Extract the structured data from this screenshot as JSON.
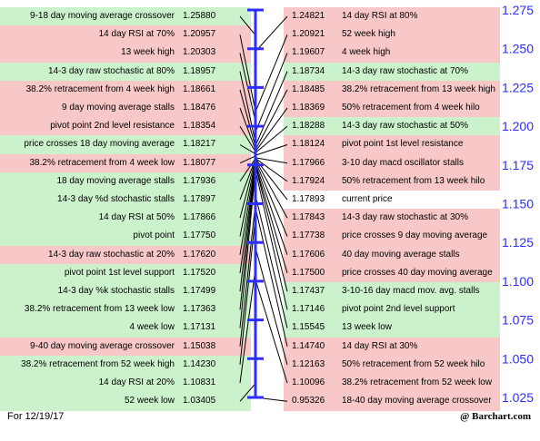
{
  "footer": {
    "date": "For 12/19/17",
    "credit": "@ Barchart.com"
  },
  "colors": {
    "green": "#ccf2cc",
    "red": "#f8c7c7",
    "axis": "#2d2dff"
  },
  "chart_data": {
    "type": "table",
    "axis": {
      "min": 1.025,
      "max": 1.275,
      "ticks": [
        "1.275",
        "1.250",
        "1.225",
        "1.200",
        "1.175",
        "1.150",
        "1.125",
        "1.100",
        "1.075",
        "1.050",
        "1.025"
      ]
    },
    "current_price": 1.17893,
    "left": [
      {
        "label": "9-18 day moving average crossover",
        "value": "1.25880",
        "color": "green"
      },
      {
        "label": "14 day RSI at 70%",
        "value": "1.20957",
        "color": "red"
      },
      {
        "label": "13 week high",
        "value": "1.20303",
        "color": "red"
      },
      {
        "label": "14-3 day raw stochastic at 80%",
        "value": "1.18957",
        "color": "green"
      },
      {
        "label": "38.2% retracement from 4 week high",
        "value": "1.18661",
        "color": "red"
      },
      {
        "label": "9 day moving average stalls",
        "value": "1.18476",
        "color": "red"
      },
      {
        "label": "pivot point 2nd level resistance",
        "value": "1.18354",
        "color": "red"
      },
      {
        "label": "price crosses 18 day moving average",
        "value": "1.18217",
        "color": "green"
      },
      {
        "label": "38.2% retracement from 4 week low",
        "value": "1.18077",
        "color": "red"
      },
      {
        "label": "18 day moving average stalls",
        "value": "1.17936",
        "color": "green"
      },
      {
        "label": "14-3 day %d stochastic stalls",
        "value": "1.17897",
        "color": "green"
      },
      {
        "label": "14 day RSI at 50%",
        "value": "1.17866",
        "color": "green"
      },
      {
        "label": "pivot point",
        "value": "1.17750",
        "color": "green"
      },
      {
        "label": "14-3 day raw stochastic at 20%",
        "value": "1.17620",
        "color": "red"
      },
      {
        "label": "pivot point 1st level support",
        "value": "1.17520",
        "color": "green"
      },
      {
        "label": "14-3 day %k stochastic stalls",
        "value": "1.17499",
        "color": "green"
      },
      {
        "label": "38.2% retracement from 13 week low",
        "value": "1.17363",
        "color": "green"
      },
      {
        "label": "4 week low",
        "value": "1.17131",
        "color": "green"
      },
      {
        "label": "9-40 day moving average crossover",
        "value": "1.15038",
        "color": "red"
      },
      {
        "label": "38.2% retracement from 52 week high",
        "value": "1.14230",
        "color": "green"
      },
      {
        "label": "14 day RSI at 20%",
        "value": "1.10831",
        "color": "green"
      },
      {
        "label": "52 week low",
        "value": "1.03405",
        "color": "green"
      }
    ],
    "right": [
      {
        "label": "14 day RSI at 80%",
        "value": "1.24821",
        "color": "red"
      },
      {
        "label": "52 week high",
        "value": "1.20921",
        "color": "red"
      },
      {
        "label": "4 week high",
        "value": "1.19607",
        "color": "red"
      },
      {
        "label": "14-3 day raw stochastic at 70%",
        "value": "1.18734",
        "color": "green"
      },
      {
        "label": "38.2% retracement from 13 week high",
        "value": "1.18485",
        "color": "red"
      },
      {
        "label": "50% retracement from 4 week hilo",
        "value": "1.18369",
        "color": "red"
      },
      {
        "label": "14-3 day raw stochastic at 50%",
        "value": "1.18288",
        "color": "green"
      },
      {
        "label": "pivot point 1st level resistance",
        "value": "1.18124",
        "color": "red"
      },
      {
        "label": "3-10 day macd oscillator stalls",
        "value": "1.17966",
        "color": "red"
      },
      {
        "label": "50% retracement from 13 week hilo",
        "value": "1.17924",
        "color": "red"
      },
      {
        "label": "current price",
        "value": "1.17893",
        "color": "white"
      },
      {
        "label": "14-3 day raw stochastic at 30%",
        "value": "1.17843",
        "color": "red"
      },
      {
        "label": "price crosses 9 day moving average",
        "value": "1.17738",
        "color": "red"
      },
      {
        "label": "40 day moving average stalls",
        "value": "1.17606",
        "color": "red"
      },
      {
        "label": "price crosses 40 day moving average",
        "value": "1.17500",
        "color": "red"
      },
      {
        "label": "3-10-16 day macd mov. avg. stalls",
        "value": "1.17437",
        "color": "green"
      },
      {
        "label": "pivot point 2nd level support",
        "value": "1.17146",
        "color": "green"
      },
      {
        "label": "13 week low",
        "value": "1.15545",
        "color": "green"
      },
      {
        "label": "14 day RSI at 30%",
        "value": "1.14740",
        "color": "red"
      },
      {
        "label": "50% retracement from 52 week hilo",
        "value": "1.12163",
        "color": "red"
      },
      {
        "label": "38.2% retracement from 52 week low",
        "value": "1.10096",
        "color": "red"
      },
      {
        "label": "18-40 day moving average crossover",
        "value": "0.95326",
        "color": "red"
      }
    ]
  }
}
